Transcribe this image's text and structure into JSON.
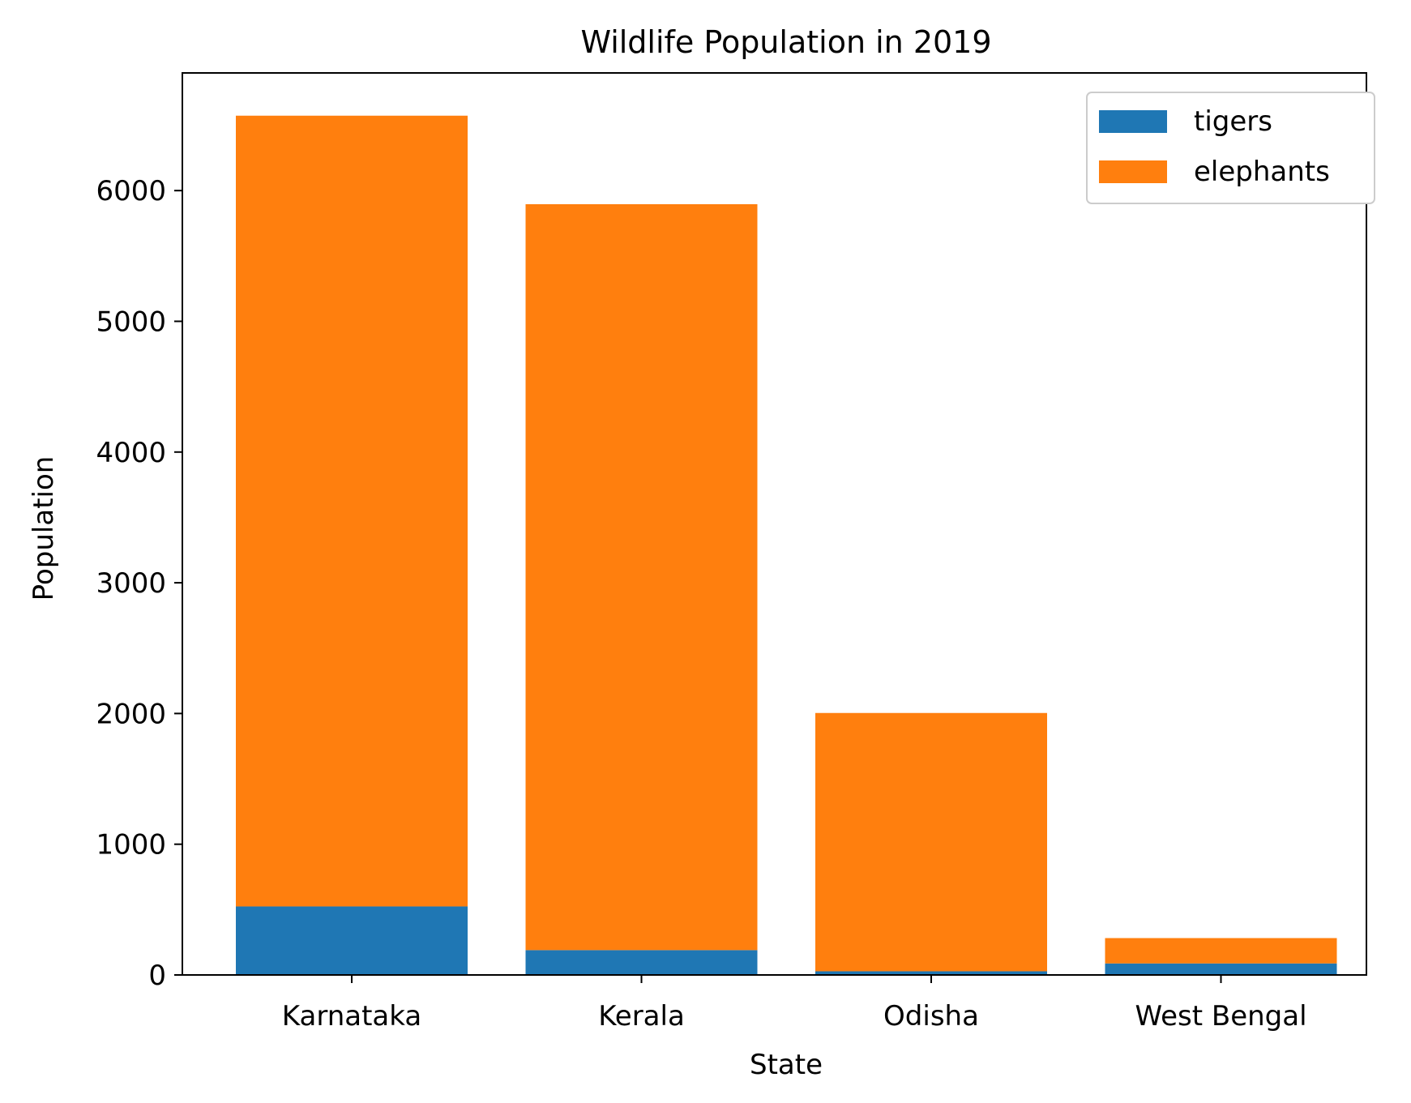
{
  "chart_data": {
    "type": "bar",
    "stacked": true,
    "title": "Wildlife Population in 2019",
    "xlabel": "State",
    "ylabel": "Population",
    "categories": [
      "Karnataka",
      "Kerala",
      "Odisha",
      "West Bengal"
    ],
    "series": [
      {
        "name": "tigers",
        "color": "#1f77b4",
        "values": [
          524,
          190,
          28,
          88
        ]
      },
      {
        "name": "elephants",
        "color": "#ff7f0e",
        "values": [
          6049,
          5706,
          1976,
          194
        ]
      }
    ],
    "ylim": [
      0,
      6900
    ],
    "yticks": [
      0,
      1000,
      2000,
      3000,
      4000,
      5000,
      6000
    ],
    "grid": false,
    "legend_position": "top-right"
  }
}
